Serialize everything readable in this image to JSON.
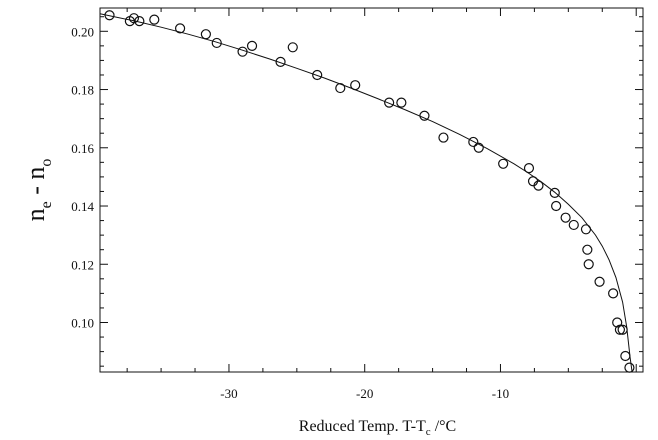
{
  "chart_data": {
    "type": "scatter",
    "xlabel_parts": {
      "main": "Reduced Temp. T-T",
      "sub": "c",
      "unit": " /°C"
    },
    "ylabel_parts": {
      "n": "n",
      "e": "e",
      "dash": " - n",
      "o": "o"
    },
    "xlim": [
      -39.5,
      0.5
    ],
    "ylim": [
      0.083,
      0.208
    ],
    "x_ticks": [
      -30,
      -20,
      -10
    ],
    "y_ticks": [
      0.1,
      0.12,
      0.14,
      0.16,
      0.18,
      0.2
    ],
    "x_tick_labels": [
      "-30",
      "-20",
      "-10"
    ],
    "y_tick_labels": [
      "0.10",
      "0.12",
      "0.14",
      "0.16",
      "0.18",
      "0.20"
    ],
    "grid": false,
    "series": [
      {
        "kind": "points",
        "marker": "open-circle",
        "points": [
          [
            -38.8,
            0.2055
          ],
          [
            -37.3,
            0.2035
          ],
          [
            -37.0,
            0.2045
          ],
          [
            -36.6,
            0.2035
          ],
          [
            -35.5,
            0.204
          ],
          [
            -33.6,
            0.201
          ],
          [
            -31.7,
            0.199
          ],
          [
            -30.9,
            0.196
          ],
          [
            -29.0,
            0.193
          ],
          [
            -28.3,
            0.195
          ],
          [
            -26.2,
            0.1895
          ],
          [
            -25.3,
            0.1945
          ],
          [
            -23.5,
            0.185
          ],
          [
            -21.8,
            0.1805
          ],
          [
            -20.7,
            0.1815
          ],
          [
            -18.2,
            0.1755
          ],
          [
            -17.3,
            0.1755
          ],
          [
            -15.6,
            0.171
          ],
          [
            -14.2,
            0.1635
          ],
          [
            -12.0,
            0.162
          ],
          [
            -11.6,
            0.16
          ],
          [
            -9.8,
            0.1545
          ],
          [
            -7.9,
            0.153
          ],
          [
            -7.6,
            0.1485
          ],
          [
            -7.2,
            0.147
          ],
          [
            -6.0,
            0.1445
          ],
          [
            -5.9,
            0.14
          ],
          [
            -5.2,
            0.136
          ],
          [
            -4.6,
            0.1335
          ],
          [
            -3.7,
            0.132
          ],
          [
            -3.6,
            0.125
          ],
          [
            -3.5,
            0.12
          ],
          [
            -2.7,
            0.114
          ],
          [
            -1.7,
            0.11
          ],
          [
            -1.4,
            0.1
          ],
          [
            -1.2,
            0.0975
          ],
          [
            -1.0,
            0.0975
          ],
          [
            -0.8,
            0.0885
          ],
          [
            -0.5,
            0.0845
          ]
        ]
      },
      {
        "kind": "fit-line",
        "points": [
          [
            -39.5,
            0.206
          ],
          [
            -37.0,
            0.2036
          ],
          [
            -35.0,
            0.2014
          ],
          [
            -33.0,
            0.199
          ],
          [
            -31.0,
            0.1964
          ],
          [
            -29.0,
            0.1935
          ],
          [
            -27.0,
            0.1905
          ],
          [
            -25.0,
            0.1873
          ],
          [
            -23.0,
            0.184
          ],
          [
            -21.0,
            0.1805
          ],
          [
            -19.0,
            0.1768
          ],
          [
            -17.0,
            0.173
          ],
          [
            -15.0,
            0.169
          ],
          [
            -13.0,
            0.1646
          ],
          [
            -11.0,
            0.1598
          ],
          [
            -9.0,
            0.1545
          ],
          [
            -8.0,
            0.1515
          ],
          [
            -7.0,
            0.1483
          ],
          [
            -6.0,
            0.1447
          ],
          [
            -5.0,
            0.1406
          ],
          [
            -4.0,
            0.136
          ],
          [
            -3.0,
            0.13
          ],
          [
            -2.5,
            0.1262
          ],
          [
            -2.0,
            0.1215
          ],
          [
            -1.5,
            0.1155
          ],
          [
            -1.0,
            0.107
          ],
          [
            -0.7,
            0.0985
          ],
          [
            -0.45,
            0.088
          ],
          [
            -0.3,
            0.083
          ]
        ]
      }
    ]
  }
}
